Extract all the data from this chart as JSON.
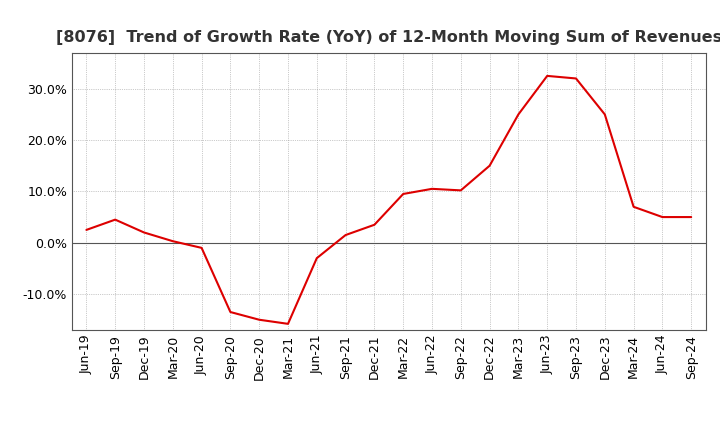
{
  "title": "[8076]  Trend of Growth Rate (YoY) of 12-Month Moving Sum of Revenues",
  "line_color": "#dd0000",
  "background_color": "#ffffff",
  "grid_color": "#999999",
  "x_labels": [
    "Jun-19",
    "Sep-19",
    "Dec-19",
    "Mar-20",
    "Jun-20",
    "Sep-20",
    "Dec-20",
    "Mar-21",
    "Jun-21",
    "Sep-21",
    "Dec-21",
    "Mar-22",
    "Jun-22",
    "Sep-22",
    "Dec-22",
    "Mar-23",
    "Jun-23",
    "Sep-23",
    "Dec-23",
    "Mar-24",
    "Jun-24",
    "Sep-24"
  ],
  "y_values": [
    2.5,
    4.5,
    2.0,
    0.3,
    -1.0,
    -13.5,
    -15.0,
    -15.8,
    -3.0,
    1.5,
    3.5,
    9.5,
    10.5,
    10.2,
    15.0,
    25.0,
    32.5,
    32.0,
    25.0,
    7.0,
    5.0,
    5.0
  ],
  "ylim": [
    -17,
    37
  ],
  "yticks": [
    -10.0,
    0.0,
    10.0,
    20.0,
    30.0
  ],
  "title_fontsize": 11.5,
  "tick_fontsize": 9,
  "linewidth": 1.5
}
